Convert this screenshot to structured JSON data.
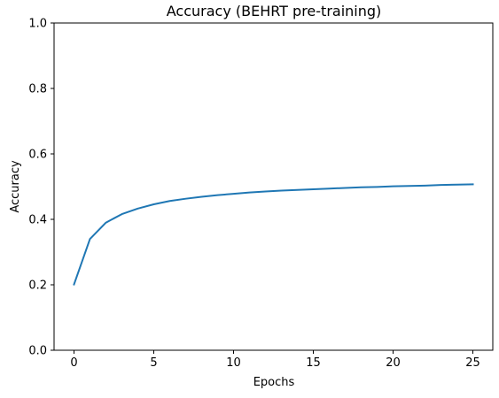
{
  "chart_data": {
    "type": "line",
    "title": "Accuracy (BEHRT pre-training)",
    "xlabel": "Epochs",
    "ylabel": "Accuracy",
    "xlim": [
      -1.25,
      26.25
    ],
    "ylim": [
      0.0,
      1.0
    ],
    "xticks": [
      0,
      5,
      10,
      15,
      20,
      25
    ],
    "yticks": [
      0.0,
      0.2,
      0.4,
      0.6,
      0.8,
      1.0
    ],
    "xtick_labels": [
      "0",
      "5",
      "10",
      "15",
      "20",
      "25"
    ],
    "ytick_labels": [
      "0.0",
      "0.2",
      "0.4",
      "0.6",
      "0.8",
      "1.0"
    ],
    "grid": false,
    "series": [
      {
        "color": "#1f77b4",
        "x": [
          0,
          1,
          2,
          3,
          4,
          5,
          6,
          7,
          8,
          9,
          10,
          11,
          12,
          13,
          14,
          15,
          16,
          17,
          18,
          19,
          20,
          21,
          22,
          23,
          24,
          25
        ],
        "y": [
          0.201,
          0.34,
          0.39,
          0.416,
          0.433,
          0.446,
          0.456,
          0.463,
          0.469,
          0.474,
          0.478,
          0.482,
          0.485,
          0.488,
          0.49,
          0.492,
          0.494,
          0.496,
          0.498,
          0.499,
          0.501,
          0.502,
          0.503,
          0.505,
          0.506,
          0.507
        ]
      }
    ]
  }
}
